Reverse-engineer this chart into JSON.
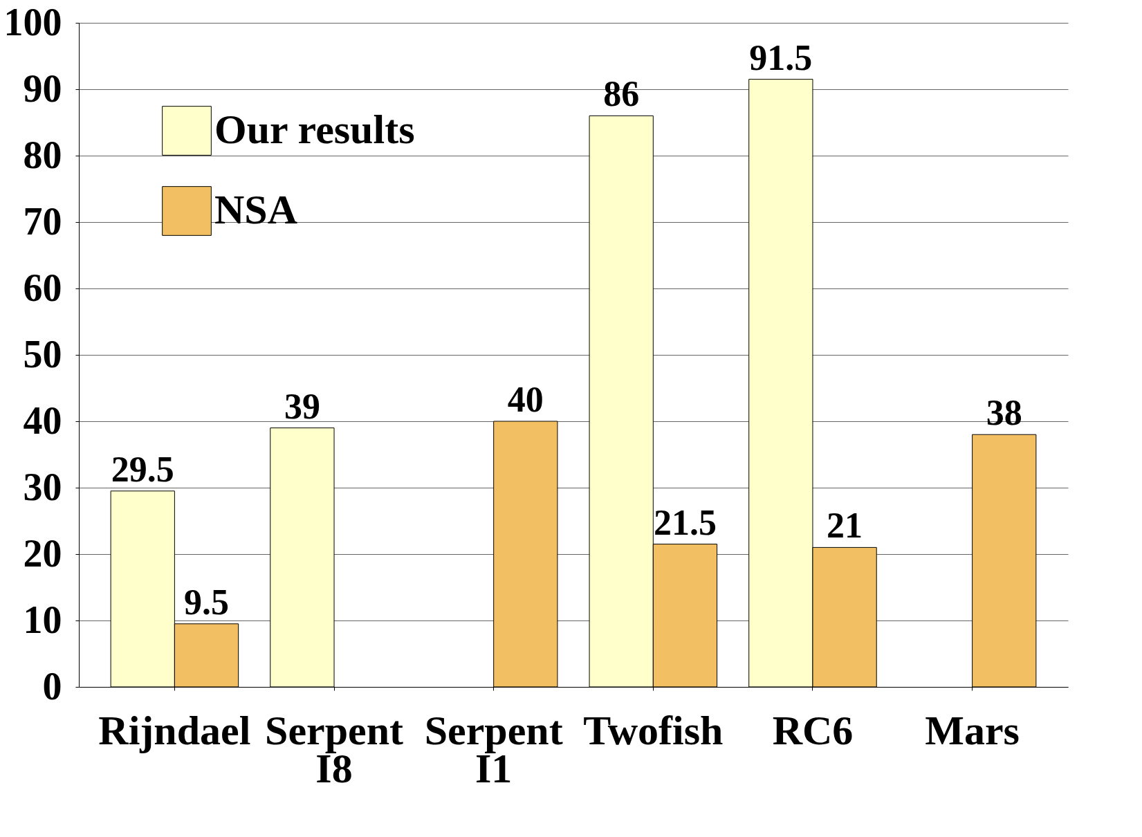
{
  "chart_data": {
    "type": "bar",
    "categories": [
      "Rijndael",
      "Serpent I8",
      "Serpent I1",
      "Twofish",
      "RC6",
      "Mars"
    ],
    "series": [
      {
        "name": "Our results",
        "color": "#ffffcc",
        "values": [
          29.5,
          39,
          null,
          86,
          91.5,
          null
        ]
      },
      {
        "name": "NSA",
        "color": "#f2c062",
        "values": [
          9.5,
          null,
          40,
          21.5,
          21,
          38
        ]
      }
    ],
    "ylim": [
      0,
      100
    ],
    "yticks": [
      0,
      10,
      20,
      30,
      40,
      50,
      60,
      70,
      80,
      90,
      100
    ],
    "grid": "y",
    "legend": "top left",
    "data_labels": true
  }
}
